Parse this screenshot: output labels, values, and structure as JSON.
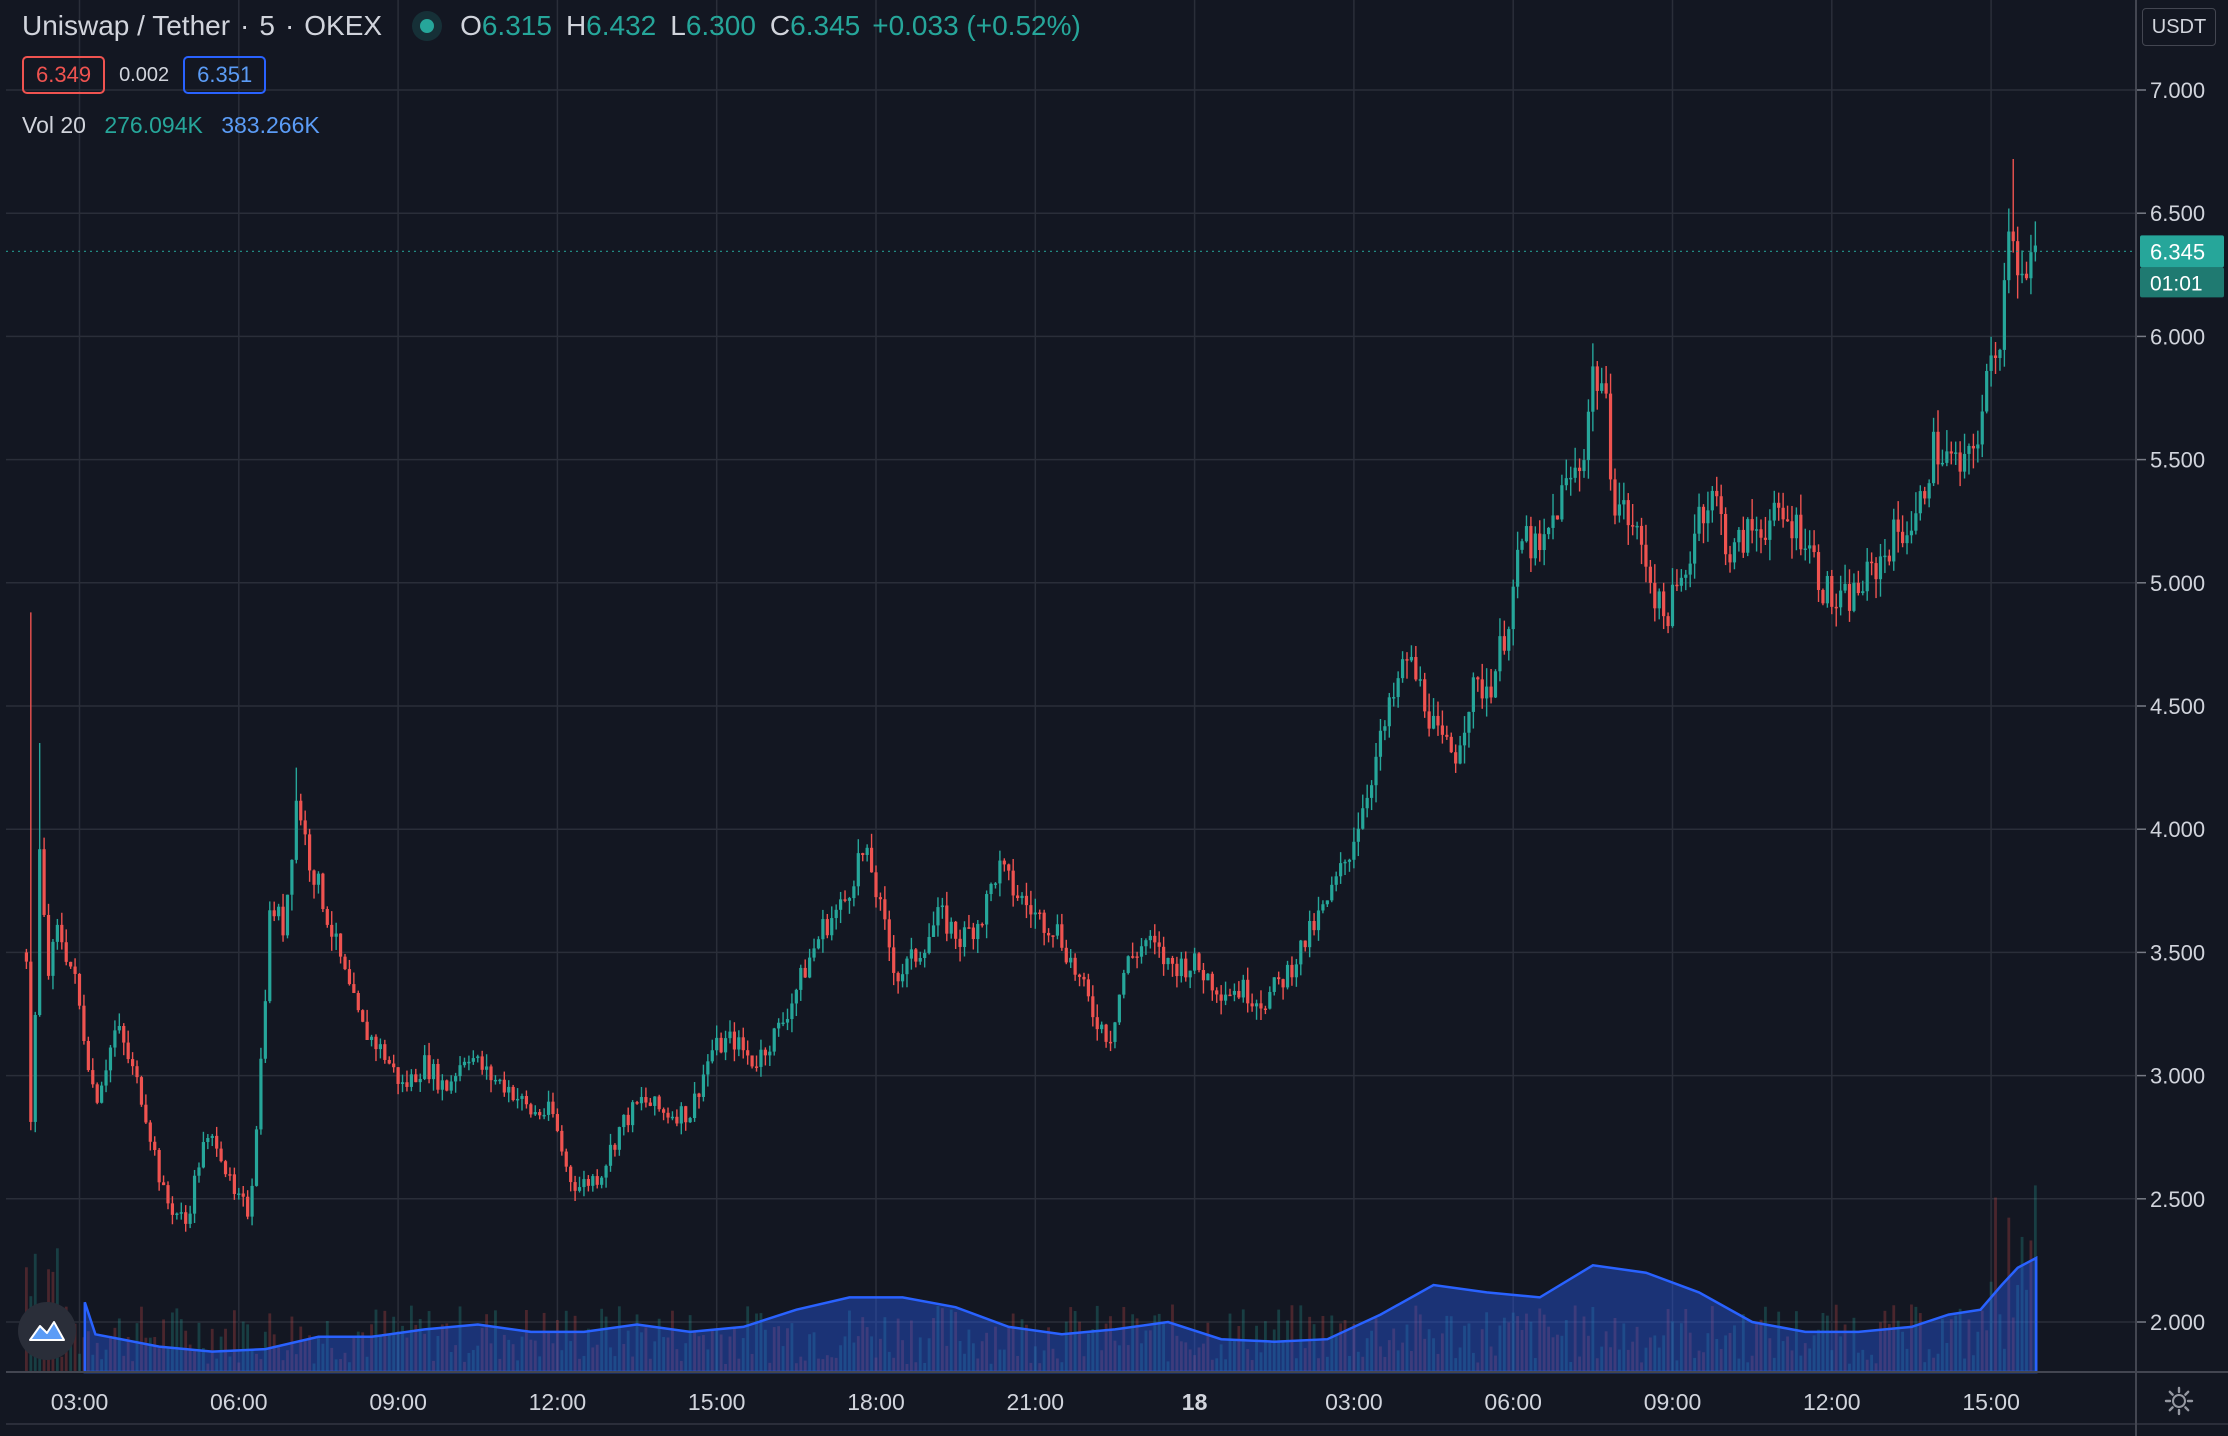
{
  "header": {
    "symbol": "Uniswap / Tether",
    "interval": "5",
    "exchange": "OKEX",
    "ohlc": {
      "o_label": "O",
      "o": "6.315",
      "h_label": "H",
      "h": "6.432",
      "l_label": "L",
      "l": "6.300",
      "c_label": "C",
      "c": "6.345",
      "change": "+0.033 (+0.52%)"
    }
  },
  "bid_ask": {
    "bid": "6.349",
    "spread": "0.002",
    "ask": "6.351"
  },
  "volume_legend": {
    "label": "Vol 20",
    "v1": "276.094K",
    "v2": "383.266K"
  },
  "price_scale": {
    "currency": "USDT",
    "last_price": "6.345",
    "countdown": "01:01"
  },
  "colors": {
    "background": "#131722",
    "up": "#26a69a",
    "down": "#ef5350",
    "volume_ma": "#2962ff",
    "grid": "#2a2e39"
  },
  "icons": {
    "logo": "tradingview-logo-icon",
    "settings": "gear-icon"
  },
  "chart_data": {
    "type": "candlestick",
    "y_ticks": [
      "7.000",
      "6.500",
      "6.000",
      "5.500",
      "5.000",
      "4.500",
      "4.000",
      "3.500",
      "3.000",
      "2.500",
      "2.000"
    ],
    "ylim": [
      1.78,
      7.1
    ],
    "x_ticks": [
      "03:00",
      "06:00",
      "09:00",
      "12:00",
      "15:00",
      "18:00",
      "21:00",
      "18",
      "03:00",
      "06:00",
      "09:00",
      "12:00",
      "15:00"
    ],
    "x_tick_hours": [
      3,
      6,
      9,
      12,
      15,
      18,
      21,
      24,
      27,
      30,
      33,
      36,
      39
    ],
    "interval_minutes": 5,
    "start_hour": 2.0,
    "end_hour": 39.85,
    "price_path": [
      [
        2.0,
        3.5
      ],
      [
        2.1,
        2.7
      ],
      [
        2.25,
        3.9
      ],
      [
        2.4,
        3.4
      ],
      [
        2.6,
        3.6
      ],
      [
        2.9,
        3.4
      ],
      [
        3.3,
        2.9
      ],
      [
        3.7,
        3.2
      ],
      [
        4.2,
        2.9
      ],
      [
        4.6,
        2.5
      ],
      [
        5.0,
        2.4
      ],
      [
        5.3,
        2.7
      ],
      [
        5.6,
        2.75
      ],
      [
        5.9,
        2.5
      ],
      [
        6.2,
        2.45
      ],
      [
        6.4,
        3.0
      ],
      [
        6.6,
        3.7
      ],
      [
        6.85,
        3.6
      ],
      [
        7.1,
        4.15
      ],
      [
        7.3,
        3.9
      ],
      [
        7.6,
        3.7
      ],
      [
        8.0,
        3.4
      ],
      [
        8.3,
        3.2
      ],
      [
        8.7,
        3.1
      ],
      [
        9.1,
        2.95
      ],
      [
        9.5,
        3.05
      ],
      [
        9.9,
        2.95
      ],
      [
        10.3,
        3.1
      ],
      [
        10.7,
        3.0
      ],
      [
        11.1,
        2.95
      ],
      [
        11.5,
        2.85
      ],
      [
        11.9,
        2.85
      ],
      [
        12.2,
        2.6
      ],
      [
        12.4,
        2.55
      ],
      [
        12.8,
        2.6
      ],
      [
        13.2,
        2.8
      ],
      [
        13.6,
        2.9
      ],
      [
        14.0,
        2.85
      ],
      [
        14.5,
        2.85
      ],
      [
        14.9,
        3.1
      ],
      [
        15.3,
        3.15
      ],
      [
        15.7,
        3.05
      ],
      [
        16.2,
        3.2
      ],
      [
        16.6,
        3.4
      ],
      [
        17.0,
        3.6
      ],
      [
        17.4,
        3.7
      ],
      [
        17.7,
        3.9
      ],
      [
        17.9,
        3.85
      ],
      [
        18.1,
        3.65
      ],
      [
        18.4,
        3.4
      ],
      [
        18.8,
        3.5
      ],
      [
        19.2,
        3.65
      ],
      [
        19.6,
        3.55
      ],
      [
        20.0,
        3.65
      ],
      [
        20.3,
        3.85
      ],
      [
        20.6,
        3.75
      ],
      [
        21.0,
        3.65
      ],
      [
        21.4,
        3.6
      ],
      [
        21.8,
        3.4
      ],
      [
        22.1,
        3.25
      ],
      [
        22.4,
        3.15
      ],
      [
        22.7,
        3.45
      ],
      [
        23.1,
        3.55
      ],
      [
        23.5,
        3.45
      ],
      [
        24.0,
        3.45
      ],
      [
        24.5,
        3.35
      ],
      [
        24.9,
        3.35
      ],
      [
        25.3,
        3.3
      ],
      [
        25.7,
        3.4
      ],
      [
        26.1,
        3.55
      ],
      [
        26.5,
        3.7
      ],
      [
        26.9,
        3.9
      ],
      [
        27.3,
        4.2
      ],
      [
        27.7,
        4.5
      ],
      [
        28.0,
        4.7
      ],
      [
        28.3,
        4.55
      ],
      [
        28.6,
        4.35
      ],
      [
        28.9,
        4.3
      ],
      [
        29.2,
        4.55
      ],
      [
        29.6,
        4.6
      ],
      [
        29.9,
        4.85
      ],
      [
        30.2,
        5.2
      ],
      [
        30.5,
        5.1
      ],
      [
        30.9,
        5.35
      ],
      [
        31.3,
        5.5
      ],
      [
        31.5,
        5.85
      ],
      [
        31.7,
        5.8
      ],
      [
        31.9,
        5.35
      ],
      [
        32.2,
        5.25
      ],
      [
        32.5,
        5.1
      ],
      [
        32.8,
        4.85
      ],
      [
        33.2,
        5.0
      ],
      [
        33.5,
        5.3
      ],
      [
        33.8,
        5.35
      ],
      [
        34.1,
        5.1
      ],
      [
        34.4,
        5.2
      ],
      [
        34.8,
        5.25
      ],
      [
        35.2,
        5.25
      ],
      [
        35.5,
        5.2
      ],
      [
        35.8,
        5.0
      ],
      [
        36.1,
        4.9
      ],
      [
        36.4,
        4.95
      ],
      [
        36.8,
        5.05
      ],
      [
        37.2,
        5.2
      ],
      [
        37.6,
        5.25
      ],
      [
        37.9,
        5.55
      ],
      [
        38.2,
        5.5
      ],
      [
        38.5,
        5.45
      ],
      [
        38.8,
        5.65
      ],
      [
        39.0,
        5.9
      ],
      [
        39.2,
        6.05
      ],
      [
        39.35,
        6.55
      ],
      [
        39.5,
        6.3
      ],
      [
        39.65,
        6.2
      ],
      [
        39.85,
        6.345
      ]
    ],
    "spikes": [
      [
        2.12,
        4.88
      ],
      [
        2.27,
        4.35
      ],
      [
        7.12,
        4.25
      ],
      [
        31.58,
        5.9
      ],
      [
        39.38,
        6.8
      ],
      [
        39.45,
        6.72
      ]
    ],
    "volume_ma_path": [
      [
        3.1,
        2.08
      ],
      [
        3.3,
        1.95
      ],
      [
        4.5,
        1.9
      ],
      [
        5.5,
        1.88
      ],
      [
        6.5,
        1.89
      ],
      [
        7.5,
        1.94
      ],
      [
        8.5,
        1.94
      ],
      [
        9.5,
        1.97
      ],
      [
        10.5,
        1.99
      ],
      [
        11.5,
        1.96
      ],
      [
        12.5,
        1.96
      ],
      [
        13.5,
        1.99
      ],
      [
        14.5,
        1.96
      ],
      [
        15.5,
        1.98
      ],
      [
        16.5,
        2.05
      ],
      [
        17.5,
        2.1
      ],
      [
        18.5,
        2.1
      ],
      [
        19.5,
        2.06
      ],
      [
        20.5,
        1.98
      ],
      [
        21.5,
        1.95
      ],
      [
        22.5,
        1.97
      ],
      [
        23.5,
        2.0
      ],
      [
        24.5,
        1.93
      ],
      [
        25.5,
        1.92
      ],
      [
        26.5,
        1.93
      ],
      [
        27.5,
        2.03
      ],
      [
        28.5,
        2.15
      ],
      [
        29.5,
        2.12
      ],
      [
        30.5,
        2.1
      ],
      [
        31.5,
        2.23
      ],
      [
        32.5,
        2.2
      ],
      [
        33.5,
        2.12
      ],
      [
        34.5,
        2.0
      ],
      [
        35.5,
        1.96
      ],
      [
        36.5,
        1.96
      ],
      [
        37.5,
        1.98
      ],
      [
        38.2,
        2.03
      ],
      [
        38.8,
        2.05
      ],
      [
        39.2,
        2.15
      ],
      [
        39.5,
        2.22
      ],
      [
        39.85,
        2.26
      ]
    ],
    "last_price": 6.345
  }
}
